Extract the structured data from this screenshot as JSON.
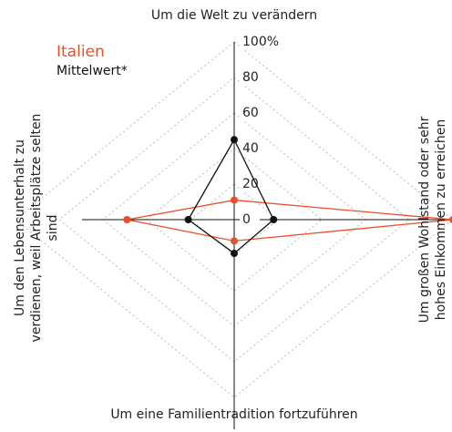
{
  "chart_data": {
    "type": "radar",
    "categories": [
      "Um die Welt zu verändern",
      "Um großen Wohlstand oder sehr hohes Einkommen zu erreichen",
      "Um eine Familientradition fortzuführen",
      "Um den Lebensunterhalt zu verdienen, weil Arbeitsplätze selten sind"
    ],
    "series": [
      {
        "name": "Italien",
        "color": "#e8502a",
        "values": [
          11,
          100,
          12,
          49
        ]
      },
      {
        "name": "Mittelwert*",
        "color": "#111111",
        "values": [
          45,
          18,
          19,
          21
        ]
      }
    ],
    "ylim": [
      0,
      100
    ],
    "yticks": [
      0,
      20,
      40,
      60,
      80,
      {
        "value": 100,
        "label": "100%"
      }
    ],
    "grid": true
  }
}
